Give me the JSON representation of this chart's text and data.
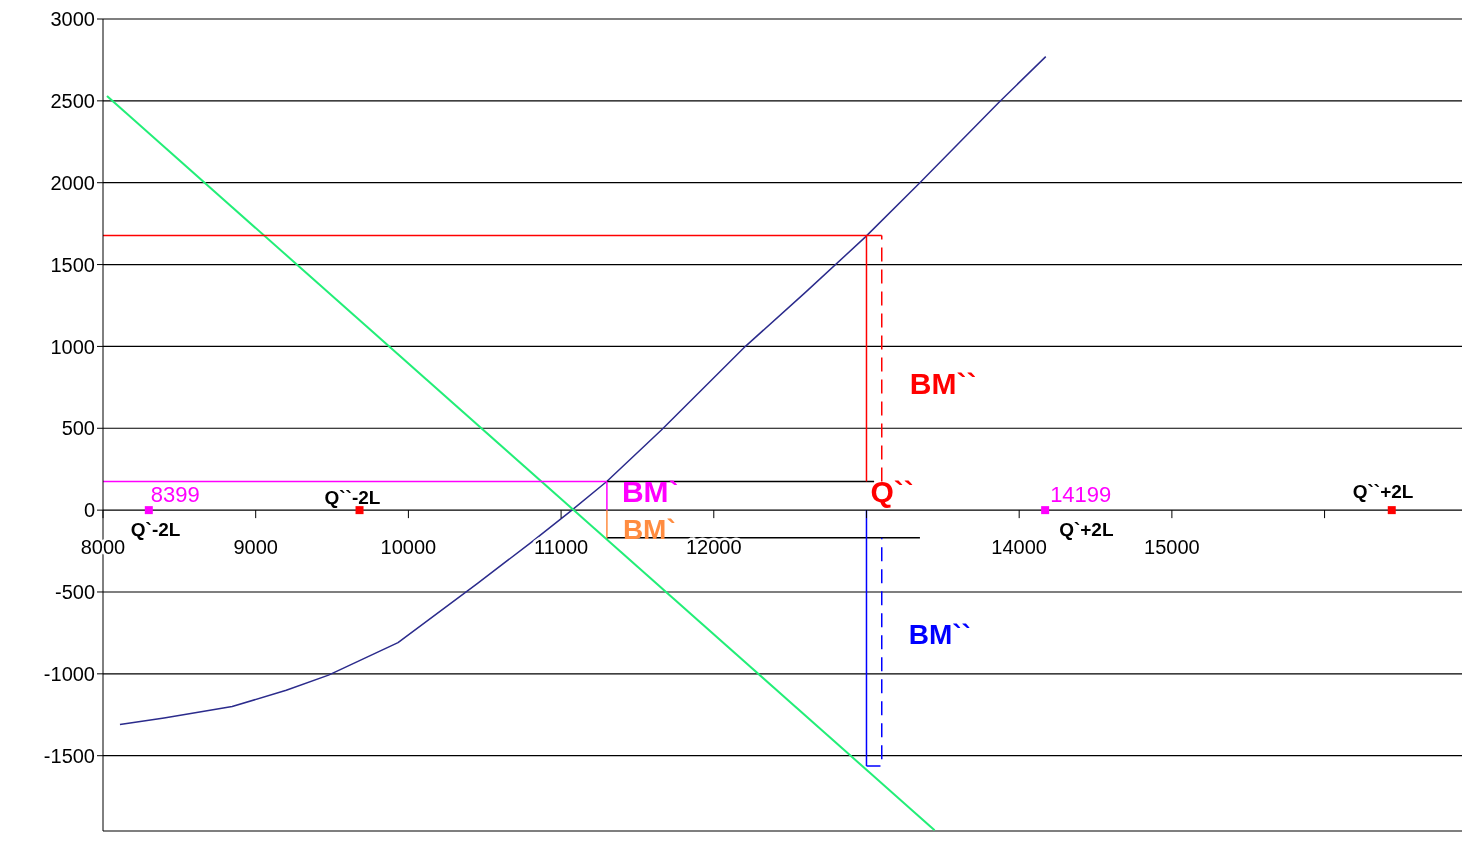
{
  "chart_data": {
    "type": "line",
    "xlim": [
      8000,
      16900
    ],
    "xticks": [
      8000,
      9000,
      10000,
      11000,
      12000,
      {
        "value": 13000,
        "label": null
      },
      14000,
      15000,
      {
        "value": 16000,
        "label": null
      }
    ],
    "ylim": [
      -1960,
      3000
    ],
    "yticks": [
      -1500,
      -1000,
      -500,
      0,
      500,
      1000,
      1500,
      2000,
      2500,
      3000
    ],
    "grid": "y",
    "marker": "none",
    "line_style": "solid",
    "series": [
      {
        "color": "#2b2b8c",
        "x": [
          8111,
          8400,
          8846,
          9200,
          9477,
          9932,
          10453,
          10800,
          11071,
          11299,
          11657,
          12209,
          12600,
          12990,
          13348,
          13868,
          14174
        ],
        "values": [
          -1310,
          -1270,
          -1200,
          -1100,
          -1008,
          -809,
          -447,
          -200,
          0,
          175,
          489,
          1002,
          1330,
          1666,
          1998,
          2492,
          2770
        ]
      },
      {
        "color": "#22ee77",
        "x": [
          8026,
          13446
        ],
        "values": [
          2529,
          -1955
        ]
      },
      {
        "color": "#ff0000",
        "x": [
          8000,
          13100
        ],
        "values": [
          1678,
          1678
        ]
      },
      {
        "color": "#ff00ff",
        "x": [
          8000,
          11300
        ],
        "values": [
          175,
          175
        ]
      },
      {
        "color": "#000000",
        "x": [
          11300,
          13050
        ],
        "values": [
          175,
          175
        ]
      },
      {
        "color": "#000000",
        "x": [
          11300,
          13350
        ],
        "values": [
          -169,
          -169
        ]
      },
      {
        "color": "#ff0000",
        "x": [
          13000,
          13000
        ],
        "values": [
          175,
          1678
        ]
      },
      {
        "color": "#0000ff",
        "x": [
          13000,
          13000
        ],
        "values": [
          -1563,
          0
        ]
      },
      {
        "color": "#ff00ff",
        "x": [
          11300,
          11300
        ],
        "values": [
          0,
          175
        ]
      },
      {
        "color": "#ff8c40",
        "x": [
          11300,
          11300
        ],
        "values": [
          -169,
          0
        ]
      },
      {
        "color": "#ff0000",
        "line_style": "dashed",
        "x": [
          13100,
          13100
        ],
        "values": [
          175,
          1678
        ]
      },
      {
        "color": "#0000ff",
        "line_style": "dashed",
        "x": [
          13000,
          13100,
          13100
        ],
        "values": [
          -1563,
          -1563,
          -169
        ]
      },
      {
        "type": "scatter",
        "marker": "square",
        "color": "#ff00ff",
        "x": [
          8300,
          14170
        ],
        "values": [
          0,
          0
        ]
      },
      {
        "type": "scatter",
        "marker": "square",
        "color": "#ff0000",
        "x": [
          9680,
          16440
        ],
        "values": [
          0,
          0
        ]
      }
    ],
    "annotations": [
      {
        "text": "BM``",
        "x": 13100,
        "y": 926
      },
      {
        "text": "Q``",
        "x": 13000,
        "y": 175
      },
      {
        "text": "BM`",
        "x": 11300,
        "y": 87
      },
      {
        "text": "BM`",
        "x": 11300,
        "y": -85
      },
      {
        "text": "BM``",
        "x": 13100,
        "y": -866
      },
      {
        "text": "8399",
        "x": 8300,
        "y": 0
      },
      {
        "text": "Q`-2L",
        "x": 8300,
        "y": 0
      },
      {
        "text": "Q``-2L",
        "x": 9680,
        "y": 0
      },
      {
        "text": "14199",
        "x": 14170,
        "y": 0
      },
      {
        "text": "Q`+2L",
        "x": 14170,
        "y": 0
      },
      {
        "text": "Q``+2L",
        "x": 16440,
        "y": 0
      }
    ]
  }
}
